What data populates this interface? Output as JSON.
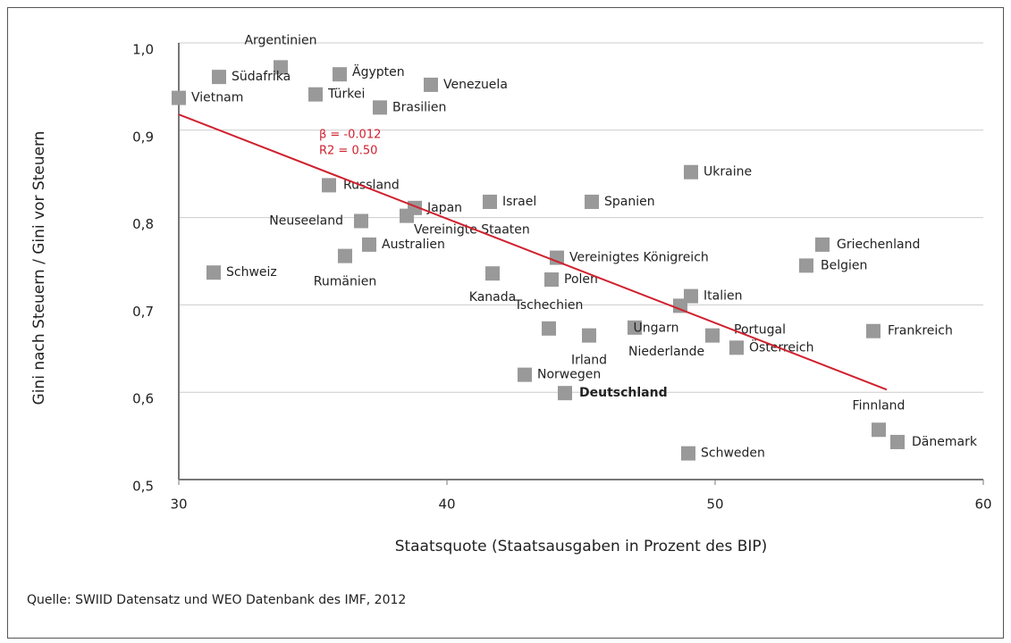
{
  "chart_data": {
    "type": "scatter",
    "y_label": "Gini nach Steuern / Gini vor Steuern",
    "x_label": "Staatsquote (Staatsausgaben in Prozent des BIP)",
    "source": "Quelle: SWIID Datensatz und WEO Datenbank des IMF, 2012",
    "labels": [
      "Vietnam",
      "Argentinien",
      "Südafrika",
      "Ägypten",
      "Türkei",
      "Venezuela",
      "Brasilien",
      "Russland",
      "Japan",
      "Vereinigte Staaten",
      "Neuseeland",
      "Australien",
      "Rumänien",
      "Schweiz",
      "Israel",
      "Spanien",
      "Ukraine",
      "Kanada",
      "Vereinigtes Königreich",
      "Polen",
      "Tschechien",
      "Irland",
      "Niederlande",
      "Ungarn",
      "Italien",
      "Portugal",
      "Österreich",
      "Griechenland",
      "Belgien",
      "Frankreich",
      "Norwegen",
      "Deutschland",
      "Finnland",
      "Dänemark",
      "Schweden"
    ],
    "x": [
      30.0,
      33.8,
      31.5,
      36.0,
      35.1,
      39.4,
      37.5,
      35.6,
      38.8,
      38.5,
      36.8,
      37.1,
      36.2,
      31.3,
      41.6,
      45.4,
      49.1,
      41.7,
      44.1,
      43.9,
      43.8,
      45.3,
      47.0,
      48.7,
      49.1,
      49.9,
      50.8,
      54.0,
      53.4,
      55.9,
      42.9,
      44.4,
      56.1,
      56.8,
      49.0
    ],
    "values": [
      0.937,
      0.972,
      0.961,
      0.964,
      0.941,
      0.952,
      0.926,
      0.837,
      0.811,
      0.802,
      0.796,
      0.769,
      0.756,
      0.737,
      0.818,
      0.818,
      0.852,
      0.736,
      0.754,
      0.729,
      0.673,
      0.665,
      0.674,
      0.699,
      0.71,
      0.665,
      0.651,
      0.769,
      0.745,
      0.67,
      0.62,
      0.599,
      0.557,
      0.543,
      0.53
    ],
    "color": "#999999",
    "trendline": {
      "x": [
        30,
        56.4
      ],
      "values": [
        0.918,
        0.603
      ],
      "color": "#d0202e"
    },
    "annotations": [
      "β = -0.012",
      "R2 = 0.50"
    ],
    "xlim": [
      30,
      60
    ],
    "xticks": [
      30,
      40,
      50,
      60
    ],
    "ylim": [
      0.5,
      1.0
    ],
    "yticks": [
      {
        "value": 0.5,
        "label": "0,5"
      },
      {
        "value": 0.6,
        "label": "0,6"
      },
      {
        "value": 0.7,
        "label": "0,7"
      },
      {
        "value": 0.8,
        "label": "0,8"
      },
      {
        "value": 0.9,
        "label": "0,9"
      },
      {
        "value": 1.0,
        "label": "1,0"
      }
    ],
    "grid": true
  }
}
